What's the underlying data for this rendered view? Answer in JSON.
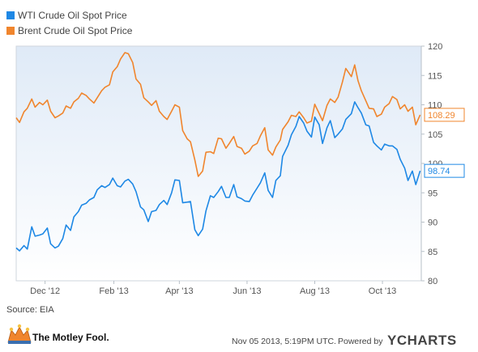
{
  "chart_data": {
    "type": "line",
    "title": "",
    "xlabel": "",
    "ylabel": "",
    "ylim": [
      80,
      120
    ],
    "yticks": [
      80,
      85,
      90,
      95,
      100,
      105,
      110,
      115,
      120
    ],
    "x_ticks": [
      {
        "label": "Dec '12",
        "date": "2012-12-01"
      },
      {
        "label": "Feb '13",
        "date": "2013-02-01"
      },
      {
        "label": "Apr '13",
        "date": "2013-04-01"
      },
      {
        "label": "Jun '13",
        "date": "2013-06-01"
      },
      {
        "label": "Aug '13",
        "date": "2013-08-01"
      },
      {
        "label": "Oct '13",
        "date": "2013-10-01"
      }
    ],
    "xlim": [
      "2012-11-05",
      "2013-11-05"
    ],
    "legend_position": "top-left",
    "grid": false,
    "series": [
      {
        "name": "WTI Crude Oil Spot Price",
        "color": "#1e88e5",
        "end_label": "98.74",
        "points": [
          [
            "2012-11-05",
            85.6
          ],
          [
            "2012-11-08",
            85.1
          ],
          [
            "2012-11-12",
            86.0
          ],
          [
            "2012-11-15",
            85.4
          ],
          [
            "2012-11-19",
            89.2
          ],
          [
            "2012-11-22",
            87.6
          ],
          [
            "2012-11-26",
            87.8
          ],
          [
            "2012-11-29",
            88.0
          ],
          [
            "2012-12-03",
            89.0
          ],
          [
            "2012-12-06",
            86.3
          ],
          [
            "2012-12-10",
            85.6
          ],
          [
            "2012-12-13",
            85.9
          ],
          [
            "2012-12-17",
            87.2
          ],
          [
            "2012-12-20",
            89.5
          ],
          [
            "2012-12-24",
            88.6
          ],
          [
            "2012-12-27",
            90.9
          ],
          [
            "2012-12-31",
            91.8
          ],
          [
            "2013-01-03",
            92.9
          ],
          [
            "2013-01-07",
            93.2
          ],
          [
            "2013-01-10",
            93.8
          ],
          [
            "2013-01-14",
            94.2
          ],
          [
            "2013-01-17",
            95.5
          ],
          [
            "2013-01-21",
            96.2
          ],
          [
            "2013-01-24",
            95.9
          ],
          [
            "2013-01-28",
            96.4
          ],
          [
            "2013-01-31",
            97.5
          ],
          [
            "2013-02-04",
            96.2
          ],
          [
            "2013-02-07",
            96.0
          ],
          [
            "2013-02-11",
            97.0
          ],
          [
            "2013-02-14",
            97.3
          ],
          [
            "2013-02-18",
            96.5
          ],
          [
            "2013-02-21",
            95.2
          ],
          [
            "2013-02-25",
            92.6
          ],
          [
            "2013-02-28",
            92.1
          ],
          [
            "2013-03-04",
            90.1
          ],
          [
            "2013-03-07",
            91.8
          ],
          [
            "2013-03-11",
            92.0
          ],
          [
            "2013-03-14",
            93.0
          ],
          [
            "2013-03-18",
            93.7
          ],
          [
            "2013-03-21",
            93.0
          ],
          [
            "2013-03-25",
            95.0
          ],
          [
            "2013-03-28",
            97.2
          ],
          [
            "2013-04-01",
            97.1
          ],
          [
            "2013-04-04",
            93.3
          ],
          [
            "2013-04-08",
            93.4
          ],
          [
            "2013-04-11",
            93.5
          ],
          [
            "2013-04-15",
            88.7
          ],
          [
            "2013-04-18",
            87.7
          ],
          [
            "2013-04-22",
            88.8
          ],
          [
            "2013-04-25",
            91.9
          ],
          [
            "2013-04-29",
            94.5
          ],
          [
            "2013-05-02",
            94.2
          ],
          [
            "2013-05-06",
            95.2
          ],
          [
            "2013-05-09",
            96.1
          ],
          [
            "2013-05-13",
            94.2
          ],
          [
            "2013-05-16",
            94.2
          ],
          [
            "2013-05-20",
            96.4
          ],
          [
            "2013-05-23",
            94.3
          ],
          [
            "2013-05-27",
            94.0
          ],
          [
            "2013-05-30",
            93.6
          ],
          [
            "2013-06-03",
            93.5
          ],
          [
            "2013-06-06",
            94.6
          ],
          [
            "2013-06-10",
            95.8
          ],
          [
            "2013-06-13",
            96.7
          ],
          [
            "2013-06-17",
            98.4
          ],
          [
            "2013-06-20",
            95.4
          ],
          [
            "2013-06-24",
            94.2
          ],
          [
            "2013-06-27",
            97.1
          ],
          [
            "2013-07-01",
            97.9
          ],
          [
            "2013-07-03",
            101.2
          ],
          [
            "2013-07-08",
            103.1
          ],
          [
            "2013-07-11",
            104.9
          ],
          [
            "2013-07-15",
            106.3
          ],
          [
            "2013-07-18",
            108.0
          ],
          [
            "2013-07-22",
            106.9
          ],
          [
            "2013-07-25",
            105.5
          ],
          [
            "2013-07-29",
            104.5
          ],
          [
            "2013-08-01",
            107.9
          ],
          [
            "2013-08-05",
            106.6
          ],
          [
            "2013-08-08",
            103.4
          ],
          [
            "2013-08-12",
            106.1
          ],
          [
            "2013-08-15",
            107.3
          ],
          [
            "2013-08-19",
            104.4
          ],
          [
            "2013-08-22",
            105.0
          ],
          [
            "2013-08-26",
            105.9
          ],
          [
            "2013-08-29",
            107.5
          ],
          [
            "2013-09-03",
            108.5
          ],
          [
            "2013-09-06",
            110.5
          ],
          [
            "2013-09-09",
            109.5
          ],
          [
            "2013-09-12",
            108.6
          ],
          [
            "2013-09-16",
            106.6
          ],
          [
            "2013-09-19",
            106.4
          ],
          [
            "2013-09-23",
            103.6
          ],
          [
            "2013-09-26",
            103.0
          ],
          [
            "2013-09-30",
            102.3
          ],
          [
            "2013-10-03",
            103.3
          ],
          [
            "2013-10-07",
            103.0
          ],
          [
            "2013-10-10",
            103.0
          ],
          [
            "2013-10-14",
            102.4
          ],
          [
            "2013-10-17",
            100.7
          ],
          [
            "2013-10-21",
            99.2
          ],
          [
            "2013-10-24",
            97.1
          ],
          [
            "2013-10-28",
            98.7
          ],
          [
            "2013-10-31",
            96.4
          ],
          [
            "2013-11-04",
            98.74
          ]
        ]
      },
      {
        "name": "Brent Crude Oil Spot Price",
        "color": "#f0852d",
        "end_label": "108.29",
        "points": [
          [
            "2012-11-05",
            107.8
          ],
          [
            "2012-11-08",
            107.0
          ],
          [
            "2012-11-12",
            108.8
          ],
          [
            "2012-11-15",
            109.4
          ],
          [
            "2012-11-19",
            111.0
          ],
          [
            "2012-11-22",
            109.6
          ],
          [
            "2012-11-26",
            110.4
          ],
          [
            "2012-11-29",
            110.0
          ],
          [
            "2012-12-03",
            110.8
          ],
          [
            "2012-12-06",
            108.9
          ],
          [
            "2012-12-10",
            107.8
          ],
          [
            "2012-12-13",
            108.1
          ],
          [
            "2012-12-17",
            108.6
          ],
          [
            "2012-12-20",
            109.8
          ],
          [
            "2012-12-24",
            109.4
          ],
          [
            "2012-12-27",
            110.5
          ],
          [
            "2012-12-31",
            111.1
          ],
          [
            "2013-01-03",
            112.0
          ],
          [
            "2013-01-07",
            111.6
          ],
          [
            "2013-01-10",
            111.0
          ],
          [
            "2013-01-14",
            110.3
          ],
          [
            "2013-01-17",
            111.2
          ],
          [
            "2013-01-21",
            112.4
          ],
          [
            "2013-01-24",
            113.0
          ],
          [
            "2013-01-28",
            113.4
          ],
          [
            "2013-01-31",
            115.6
          ],
          [
            "2013-02-04",
            116.5
          ],
          [
            "2013-02-07",
            117.8
          ],
          [
            "2013-02-11",
            118.9
          ],
          [
            "2013-02-14",
            118.7
          ],
          [
            "2013-02-18",
            117.2
          ],
          [
            "2013-02-21",
            114.4
          ],
          [
            "2013-02-25",
            113.5
          ],
          [
            "2013-02-28",
            111.2
          ],
          [
            "2013-03-04",
            110.5
          ],
          [
            "2013-03-07",
            109.9
          ],
          [
            "2013-03-11",
            110.7
          ],
          [
            "2013-03-14",
            108.9
          ],
          [
            "2013-03-18",
            108.0
          ],
          [
            "2013-03-21",
            107.5
          ],
          [
            "2013-03-25",
            108.9
          ],
          [
            "2013-03-28",
            110.0
          ],
          [
            "2013-04-01",
            109.6
          ],
          [
            "2013-04-04",
            105.6
          ],
          [
            "2013-04-08",
            104.2
          ],
          [
            "2013-04-11",
            103.7
          ],
          [
            "2013-04-15",
            100.6
          ],
          [
            "2013-04-18",
            97.8
          ],
          [
            "2013-04-22",
            98.7
          ],
          [
            "2013-04-25",
            101.9
          ],
          [
            "2013-04-29",
            102.0
          ],
          [
            "2013-05-02",
            101.7
          ],
          [
            "2013-05-06",
            104.3
          ],
          [
            "2013-05-09",
            104.2
          ],
          [
            "2013-05-13",
            102.6
          ],
          [
            "2013-05-16",
            103.4
          ],
          [
            "2013-05-20",
            104.6
          ],
          [
            "2013-05-23",
            102.9
          ],
          [
            "2013-05-27",
            102.6
          ],
          [
            "2013-05-30",
            101.6
          ],
          [
            "2013-06-03",
            102.1
          ],
          [
            "2013-06-06",
            103.0
          ],
          [
            "2013-06-10",
            103.4
          ],
          [
            "2013-06-13",
            104.7
          ],
          [
            "2013-06-17",
            106.1
          ],
          [
            "2013-06-20",
            102.3
          ],
          [
            "2013-06-24",
            101.4
          ],
          [
            "2013-06-27",
            102.8
          ],
          [
            "2013-07-01",
            104.0
          ],
          [
            "2013-07-03",
            105.8
          ],
          [
            "2013-07-08",
            107.1
          ],
          [
            "2013-07-11",
            108.2
          ],
          [
            "2013-07-15",
            108.0
          ],
          [
            "2013-07-18",
            108.8
          ],
          [
            "2013-07-22",
            107.8
          ],
          [
            "2013-07-25",
            106.9
          ],
          [
            "2013-07-29",
            107.2
          ],
          [
            "2013-08-01",
            110.1
          ],
          [
            "2013-08-05",
            108.5
          ],
          [
            "2013-08-08",
            107.3
          ],
          [
            "2013-08-12",
            109.9
          ],
          [
            "2013-08-15",
            111.0
          ],
          [
            "2013-08-19",
            110.4
          ],
          [
            "2013-08-22",
            111.3
          ],
          [
            "2013-08-26",
            113.9
          ],
          [
            "2013-08-29",
            116.2
          ],
          [
            "2013-09-03",
            114.8
          ],
          [
            "2013-09-06",
            116.8
          ],
          [
            "2013-09-09",
            114.1
          ],
          [
            "2013-09-12",
            112.4
          ],
          [
            "2013-09-16",
            110.7
          ],
          [
            "2013-09-19",
            109.4
          ],
          [
            "2013-09-23",
            109.3
          ],
          [
            "2013-09-26",
            108.0
          ],
          [
            "2013-09-30",
            108.4
          ],
          [
            "2013-10-03",
            109.6
          ],
          [
            "2013-10-07",
            110.2
          ],
          [
            "2013-10-10",
            111.4
          ],
          [
            "2013-10-14",
            110.9
          ],
          [
            "2013-10-17",
            109.3
          ],
          [
            "2013-10-21",
            110.0
          ],
          [
            "2013-10-24",
            108.9
          ],
          [
            "2013-10-28",
            109.6
          ],
          [
            "2013-10-31",
            106.6
          ],
          [
            "2013-11-04",
            108.29
          ]
        ]
      }
    ]
  },
  "source": "Source: EIA",
  "footer": {
    "timestamp": "Nov 05 2013, 5:19PM UTC.",
    "powered_by": "Powered by",
    "brand_right": "YCHARTS",
    "brand_left": "The Motley Fool.",
    "brand_left_icon": "jester-hat-icon"
  }
}
